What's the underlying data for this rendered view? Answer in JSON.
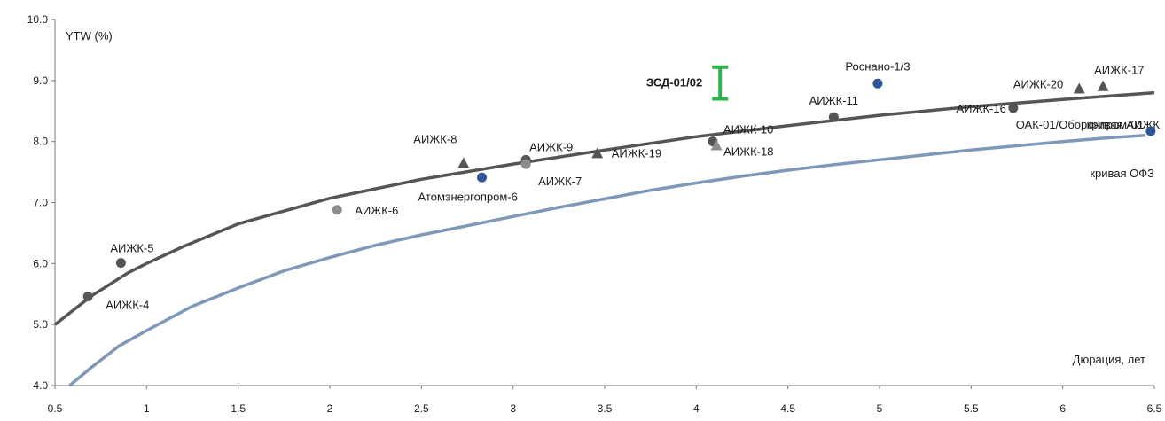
{
  "chart_data": {
    "type": "scatter",
    "ylabel": "YTW (%)",
    "xlabel": "Дюрация, лет",
    "xlim": [
      0.5,
      6.5
    ],
    "ylim": [
      4.0,
      10.0
    ],
    "x_ticks": [
      "0.5",
      "1",
      "1.5",
      "2",
      "2.5",
      "3",
      "3.5",
      "4",
      "4.5",
      "5",
      "5.5",
      "6",
      "6.5"
    ],
    "y_ticks": [
      "4.0",
      "5.0",
      "6.0",
      "7.0",
      "8.0",
      "9.0",
      "10.0"
    ],
    "grid": false,
    "curves": [
      {
        "name": "кривая АИЖК",
        "color": "#555555",
        "x": [
          0.5,
          0.7,
          0.9,
          1.0,
          1.2,
          1.5,
          2.0,
          2.5,
          3.0,
          3.5,
          4.0,
          4.5,
          5.0,
          5.5,
          6.0,
          6.5
        ],
        "y": [
          5.0,
          5.47,
          5.85,
          6.0,
          6.28,
          6.65,
          7.07,
          7.38,
          7.63,
          7.86,
          8.08,
          8.26,
          8.43,
          8.57,
          8.69,
          8.8
        ]
      },
      {
        "name": "кривая ОФЗ",
        "color": "#7f97b8",
        "x": [
          0.58,
          0.7,
          0.85,
          1.0,
          1.25,
          1.5,
          1.75,
          2.0,
          2.25,
          2.5,
          2.75,
          3.0,
          3.25,
          3.5,
          3.75,
          4.0,
          4.25,
          4.5,
          4.75,
          5.0,
          5.25,
          5.5,
          5.75,
          6.0,
          6.25,
          6.45
        ],
        "y": [
          4.0,
          4.3,
          4.65,
          4.9,
          5.3,
          5.6,
          5.88,
          6.1,
          6.3,
          6.47,
          6.62,
          6.77,
          6.92,
          7.06,
          7.2,
          7.32,
          7.43,
          7.53,
          7.62,
          7.7,
          7.78,
          7.86,
          7.93,
          8.0,
          8.06,
          8.1
        ]
      }
    ],
    "points": [
      {
        "name": "АИЖК-4",
        "x": 0.68,
        "y": 5.46,
        "shape": "circle",
        "color": "#555555"
      },
      {
        "name": "АИЖК-5",
        "x": 0.86,
        "y": 6.01,
        "shape": "circle",
        "color": "#555555"
      },
      {
        "name": "АИЖК-6",
        "x": 2.04,
        "y": 6.88,
        "shape": "circle",
        "color": "#8c8c8c"
      },
      {
        "name": "АИЖК-8",
        "x": 2.73,
        "y": 7.64,
        "shape": "triangle",
        "color": "#555555"
      },
      {
        "name": "Атомэнергопром-6",
        "x": 2.83,
        "y": 7.41,
        "shape": "circle",
        "color": "#2e5597"
      },
      {
        "name": "АИЖК-9",
        "x": 3.07,
        "y": 7.7,
        "shape": "circle",
        "color": "#555555"
      },
      {
        "name": "АИЖК-7",
        "x": 3.07,
        "y": 7.63,
        "shape": "circle",
        "color": "#8c8c8c"
      },
      {
        "name": "АИЖК-19",
        "x": 3.46,
        "y": 7.8,
        "shape": "triangle",
        "color": "#555555"
      },
      {
        "name": "АИЖК-10",
        "x": 4.09,
        "y": 8.0,
        "shape": "circle",
        "color": "#555555"
      },
      {
        "name": "АИЖК-18",
        "x": 4.11,
        "y": 7.93,
        "shape": "triangle",
        "color": "#8c8c8c"
      },
      {
        "name": "АИЖК-11",
        "x": 4.75,
        "y": 8.4,
        "shape": "circle",
        "color": "#555555"
      },
      {
        "name": "Роснано-1/3",
        "x": 4.99,
        "y": 8.95,
        "shape": "circle",
        "color": "#2e5597"
      },
      {
        "name": "АИЖК-16",
        "x": 5.73,
        "y": 8.55,
        "shape": "circle",
        "color": "#555555"
      },
      {
        "name": "АИЖК-20",
        "x": 6.09,
        "y": 8.86,
        "shape": "triangle",
        "color": "#555555"
      },
      {
        "name": "АИЖК-17",
        "x": 6.22,
        "y": 8.9,
        "shape": "triangle",
        "color": "#555555"
      },
      {
        "name": "ОАК-01/Оборонпром-01",
        "x": 6.48,
        "y": 8.17,
        "shape": "circle",
        "color": "#2e5597"
      }
    ],
    "range_marker": {
      "name": "ЗСД-01/02",
      "x": 4.13,
      "y_low": 8.7,
      "y_high": 9.22,
      "color": "#2db34a"
    }
  }
}
